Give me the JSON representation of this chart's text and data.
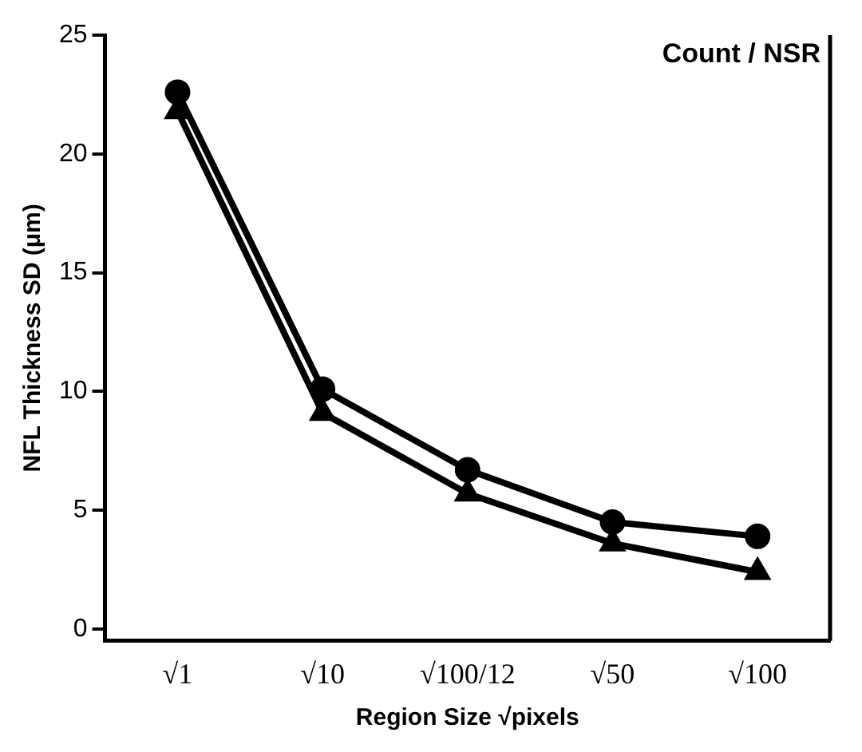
{
  "chart_data": {
    "type": "line",
    "xlabel": "Region Size √pixels",
    "ylabel": "NFL Thickness SD (μm)",
    "annotations": [
      "Count / NSR"
    ],
    "categories": [
      "√1",
      "√10",
      "√100/12",
      "√50",
      "√100"
    ],
    "series": [
      {
        "color": "#000000",
        "marker": "circle",
        "values": [
          22.6,
          10.1,
          6.7,
          4.5,
          3.9
        ]
      },
      {
        "color": "#000000",
        "marker": "triangle",
        "values": [
          21.8,
          9.1,
          5.7,
          3.6,
          2.4
        ]
      }
    ],
    "ylim": [
      -0.5,
      25
    ],
    "yticks": [
      0,
      5,
      10,
      15,
      20,
      25
    ],
    "grid": false,
    "legend": false,
    "line_style": "solid"
  }
}
